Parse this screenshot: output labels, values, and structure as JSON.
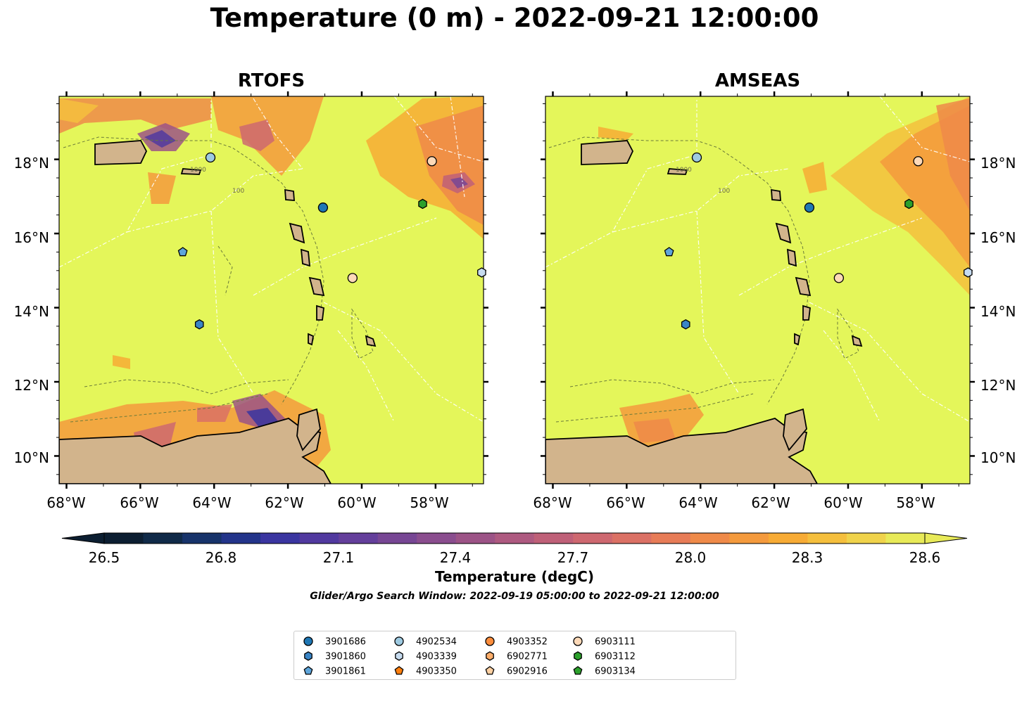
{
  "title": "Temperature (0 m) - 2022-09-21 12:00:00",
  "panels": [
    {
      "title": "RTOFS"
    },
    {
      "title": "AMSEAS"
    }
  ],
  "colorbar": {
    "label": "Temperature (degC)",
    "ticks": [
      "26.5",
      "26.8",
      "27.1",
      "27.4",
      "27.7",
      "28.0",
      "28.3",
      "28.6"
    ],
    "colors": [
      "#0c1e31",
      "#102a48",
      "#17336a",
      "#23348a",
      "#3a35a0",
      "#51399f",
      "#643f9b",
      "#774694",
      "#8a4d8e",
      "#9c5386",
      "#ae5a80",
      "#bf6078",
      "#ce6870",
      "#db7165",
      "#e77c57",
      "#ef8a49",
      "#f49a3d",
      "#f7ab35",
      "#f5bf3d",
      "#f0d34b",
      "#e8ea58"
    ],
    "land_color": "#d2b48c",
    "sea_color": "#e4f65a"
  },
  "search_window": "Glider/Argo Search Window: 2022-09-19 05:00:00 to 2022-09-21 12:00:00",
  "chart_data": {
    "type": "heatmap",
    "variable": "Temperature (0 m)",
    "units": "degC",
    "x_ticks": [
      "68°W",
      "66°W",
      "64°W",
      "62°W",
      "60°W",
      "58°W"
    ],
    "y_ticks": [
      "18°N",
      "16°N",
      "14°N",
      "12°N",
      "10°N"
    ],
    "x_values": [
      -68,
      -66,
      -64,
      -62,
      -60,
      -58
    ],
    "y_values": [
      18,
      16,
      14,
      12,
      10
    ],
    "xlim": [
      -68.2,
      -56.7
    ],
    "ylim": [
      9.25,
      19.7
    ],
    "clim": [
      26.5,
      28.6
    ],
    "contour_labels": [
      "1000",
      "100"
    ],
    "floats": [
      {
        "id": "3901686",
        "marker": "circle",
        "color": "#1f77b4",
        "lon": -61.05,
        "lat": 16.7
      },
      {
        "id": "3901860",
        "marker": "hexagon",
        "color": "#3a85c6",
        "lon": -64.4,
        "lat": 13.55
      },
      {
        "id": "3901861",
        "marker": "pentagon",
        "color": "#5ea5da",
        "lon": -64.85,
        "lat": 15.5
      },
      {
        "id": "4902534",
        "marker": "circle",
        "color": "#9ecae1",
        "lon": -64.1,
        "lat": 18.05
      },
      {
        "id": "4903339",
        "marker": "hexagon",
        "color": "#c6dbef",
        "lon": -56.75,
        "lat": 14.95
      },
      {
        "id": "4903350",
        "marker": "pentagon",
        "color": "#ff7f0e",
        "lon": null,
        "lat": null
      },
      {
        "id": "4903352",
        "marker": "circle",
        "color": "#fd8d3c",
        "lon": null,
        "lat": null
      },
      {
        "id": "6902771",
        "marker": "hexagon",
        "color": "#fdae6b",
        "lon": null,
        "lat": null
      },
      {
        "id": "6902916",
        "marker": "pentagon",
        "color": "#fdd0a2",
        "lon": null,
        "lat": null
      },
      {
        "id": "6903111",
        "marker": "circle",
        "color": "#fdd9b8",
        "lon": -60.25,
        "lat": 14.8
      },
      {
        "id": "6903112",
        "marker": "hexagon",
        "color": "#2ca02c",
        "lon": -58.35,
        "lat": 16.8
      },
      {
        "id": "6903134",
        "marker": "pentagon",
        "color": "#2ca02c",
        "lon": null,
        "lat": null
      },
      {
        "id": "",
        "marker": "circle",
        "color": "#fdd9b8",
        "lon": -58.1,
        "lat": 17.95
      }
    ]
  }
}
